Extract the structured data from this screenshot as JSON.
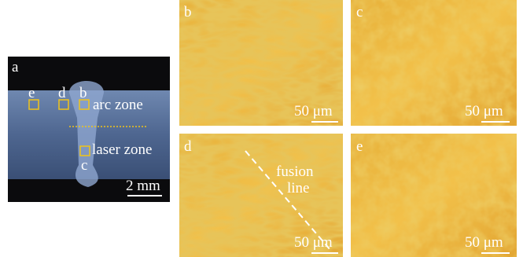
{
  "panels": [
    {
      "label": "a",
      "box_labels": [
        "e",
        "d",
        "b",
        "c"
      ],
      "zones": [
        "arc zone",
        "laser zone"
      ],
      "scale_bar": "2 mm"
    },
    {
      "label": "b",
      "scale_bar": "50 μm"
    },
    {
      "label": "c",
      "scale_bar": "50 μm"
    },
    {
      "label": "d",
      "annotation": [
        "fusion",
        "line"
      ],
      "scale_bar": "50 μm"
    },
    {
      "label": "e",
      "scale_bar": "50 μm"
    }
  ]
}
